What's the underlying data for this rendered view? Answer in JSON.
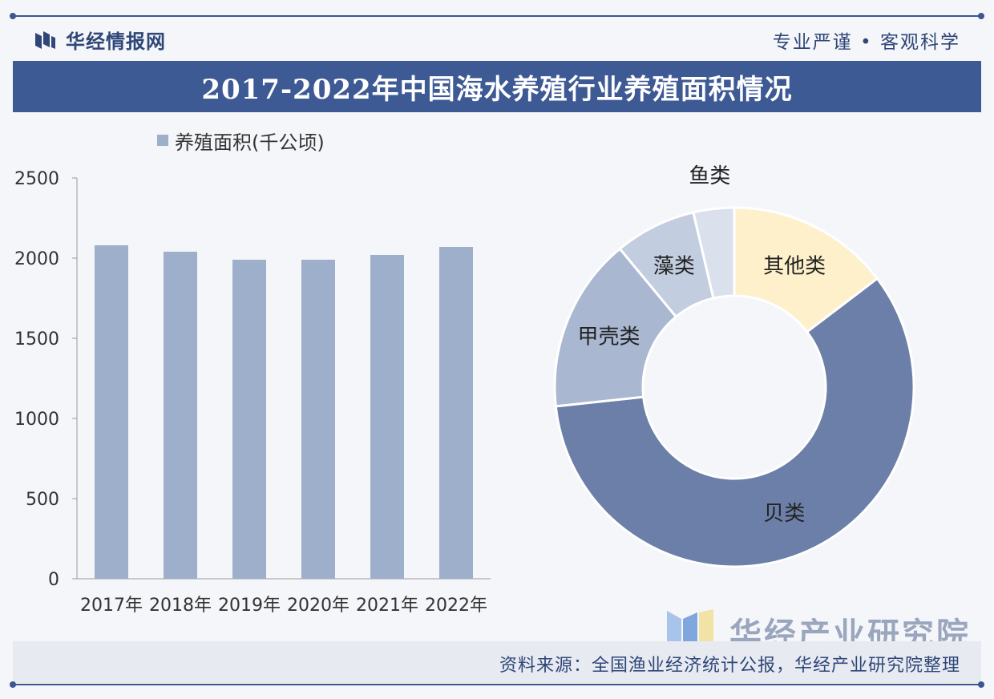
{
  "header": {
    "brand": "华经情报网",
    "slogan": "专业严谨 • 客观科学",
    "title": "2017-2022年中国海水养殖行业养殖面积情况"
  },
  "footer": {
    "source": "资料来源：全国渔业经济统计公报，华经产业研究院整理",
    "watermark_brand": "华经产业研究院"
  },
  "colors": {
    "primary": "#3e5a94",
    "bar": "#9eafcb",
    "shell": "#6b7fa8",
    "crustacean": "#a9b7d0",
    "algae": "#c3cde0",
    "fish": "#dbe1ec",
    "other": "#fdf0cb"
  },
  "chart_data": [
    {
      "type": "bar",
      "legend": [
        "养殖面积(千公顷)"
      ],
      "categories": [
        "2017年",
        "2018年",
        "2019年",
        "2020年",
        "2021年",
        "2022年"
      ],
      "series": [
        {
          "name": "养殖面积(千公顷)",
          "values": [
            2080,
            2040,
            1990,
            1990,
            2020,
            2070
          ]
        }
      ],
      "yticks": [
        "2500",
        "2000",
        "1500",
        "1000",
        "500",
        "0"
      ],
      "ylim": [
        0,
        2500
      ]
    },
    {
      "type": "pie",
      "labels": [
        "其他类",
        "贝类",
        "甲壳类",
        "藻类",
        "鱼类"
      ],
      "values": [
        14,
        56,
        15,
        7,
        3.5
      ]
    }
  ]
}
